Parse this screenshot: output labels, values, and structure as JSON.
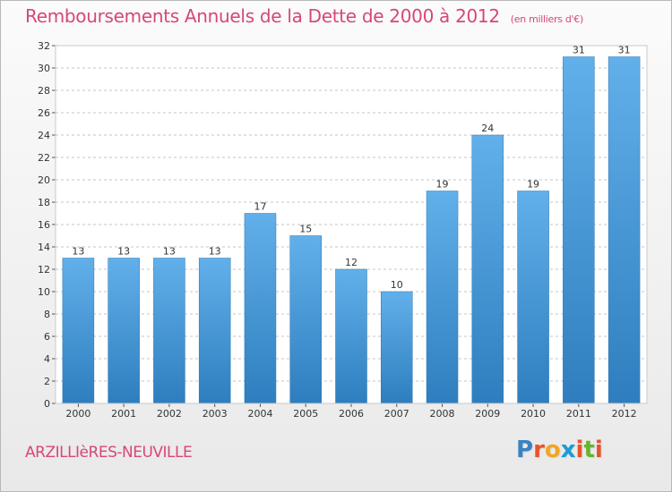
{
  "header": {
    "title": "Remboursements Annuels de la Dette de 2000 à 2012",
    "unit": "(en milliers d'€)"
  },
  "footer": {
    "commune": "ARZILLIèRES-NEUVILLE",
    "logo_letters": [
      "P",
      "r",
      "o",
      "x",
      "i",
      "t",
      "i"
    ],
    "logo_colors": [
      "#3b82c4",
      "#e9532c",
      "#f2a623",
      "#1c9bd7",
      "#e9532c",
      "#68b42f",
      "#e9532c"
    ]
  },
  "chart_data": {
    "type": "bar",
    "categories": [
      "2000",
      "2001",
      "2002",
      "2003",
      "2004",
      "2005",
      "2006",
      "2007",
      "2008",
      "2009",
      "2010",
      "2011",
      "2012"
    ],
    "values": [
      13,
      13,
      13,
      13,
      17,
      15,
      12,
      10,
      19,
      24,
      19,
      31,
      31
    ],
    "data_labels": [
      "13",
      "13",
      "13",
      "13",
      "17",
      "15",
      "12",
      "10",
      "19",
      "24",
      "19",
      "31",
      "31"
    ],
    "yticks": [
      0,
      2,
      4,
      6,
      8,
      10,
      12,
      14,
      16,
      18,
      20,
      22,
      24,
      26,
      28,
      30,
      32
    ],
    "ylim": [
      0,
      32
    ],
    "grid": "horizontal-dashed",
    "bar_color_top": "#62b0ea",
    "bar_color_bottom": "#2e7ebf"
  }
}
